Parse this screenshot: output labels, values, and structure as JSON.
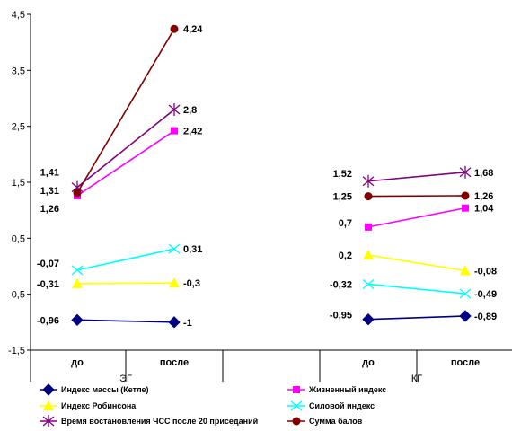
{
  "chart_data": {
    "type": "line",
    "groups": [
      {
        "name": "ЭГ",
        "categories": [
          "до",
          "после"
        ]
      },
      {
        "name": "КГ",
        "categories": [
          "до",
          "после"
        ]
      }
    ],
    "ylim": [
      -1.5,
      4.5
    ],
    "yticks": [
      "-1,5",
      "-0,5",
      "0,5",
      "1,5",
      "2,5",
      "3,5",
      "4,5"
    ],
    "ytick_values": [
      -1.5,
      -0.5,
      0.5,
      1.5,
      2.5,
      3.5,
      4.5
    ],
    "grid": false,
    "legend_position": "bottom",
    "series": [
      {
        "name": "Индекс массы (Кетле)",
        "color": "#000080",
        "marker": "diamond",
        "eg": [
          -0.96,
          -1
        ],
        "eg_labels": [
          "-0,96",
          "-1"
        ],
        "kg": [
          -0.95,
          -0.89
        ],
        "kg_labels": [
          "-0,95",
          "-0,89"
        ]
      },
      {
        "name": "Жизненный индекс",
        "color": "#FF00FF",
        "marker": "square",
        "eg": [
          1.26,
          2.42
        ],
        "eg_labels": [
          "1,26",
          "2,42"
        ],
        "kg": [
          0.7,
          1.04
        ],
        "kg_labels": [
          "0,7",
          "1,04"
        ]
      },
      {
        "name": "Индекс Робинсона",
        "color": "#FFFF00",
        "marker": "triangle",
        "eg": [
          -0.31,
          -0.3
        ],
        "eg_labels": [
          "-0,31",
          "-0,3"
        ],
        "kg": [
          0.2,
          -0.08
        ],
        "kg_labels": [
          "0,2",
          "-0,08"
        ]
      },
      {
        "name": "Силовой индекс",
        "color": "#00FFFF",
        "marker": "x",
        "eg": [
          -0.07,
          0.31
        ],
        "eg_labels": [
          "-0,07",
          "0,31"
        ],
        "kg": [
          -0.32,
          -0.49
        ],
        "kg_labels": [
          "-0,32",
          "-0,49"
        ]
      },
      {
        "name": "Время востановления ЧСС после 20 приседаний",
        "color": "#800080",
        "marker": "star",
        "eg": [
          1.41,
          2.8
        ],
        "eg_labels": [
          "1,41",
          "2,8"
        ],
        "kg": [
          1.52,
          1.68
        ],
        "kg_labels": [
          "1,52",
          "1,68"
        ]
      },
      {
        "name": "Сумма балов",
        "color": "#800000",
        "marker": "circle",
        "eg": [
          1.31,
          4.24
        ],
        "eg_labels": [
          "1,31",
          "4,24"
        ],
        "kg": [
          1.25,
          1.26
        ],
        "kg_labels": [
          "1,25",
          "1,26"
        ]
      }
    ]
  }
}
